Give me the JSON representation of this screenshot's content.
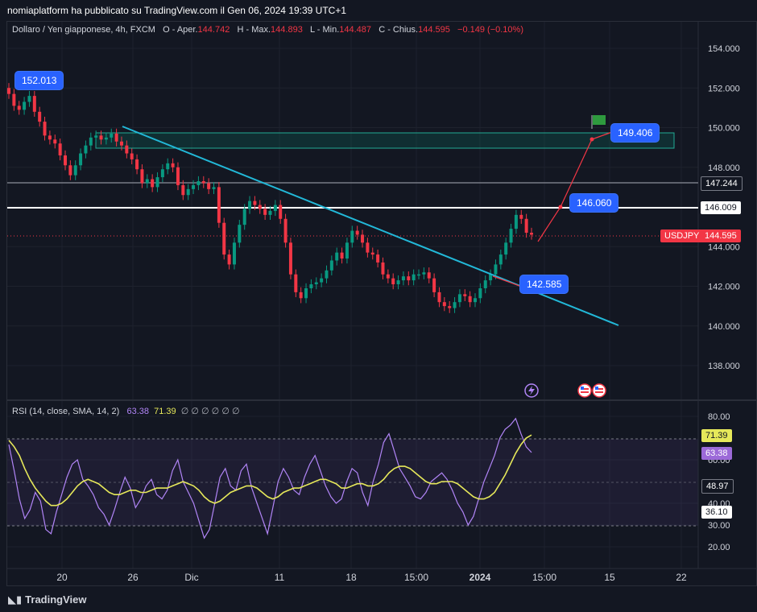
{
  "header": {
    "published_by": "nomiaplatform ha pubblicato su TradingView.com il Gen 06, 2024 19:39 UTC+1"
  },
  "legend": {
    "symbol_desc": "Dollaro / Yen giapponese, 4h, FXCM",
    "open_label": "O - Aper.",
    "open_value": "144.742",
    "high_label": "H - Max.",
    "high_value": "144.893",
    "low_label": "L - Min.",
    "low_value": "144.487",
    "close_label": "C - Chius.",
    "close_value": "144.595",
    "change": "−0.149 (−0.10%)"
  },
  "rsi_legend": {
    "label": "RSI (14, close, SMA, 14, 2)",
    "rsi_value": "63.38",
    "sma_value": "71.39",
    "empty_markers": "∅ ∅ ∅ ∅ ∅ ∅"
  },
  "price_axis": {
    "ticks": [
      "154.000",
      "152.000",
      "150.000",
      "148.000",
      "146.000",
      "144.000",
      "142.000",
      "140.000",
      "138.000"
    ],
    "tags": {
      "level_147": "147.244",
      "level_146": "146.009",
      "symbol": "USDJPY",
      "last": "144.595"
    }
  },
  "rsi_axis": {
    "ticks": [
      "80.00",
      "60.00",
      "40.00",
      "30.00",
      "20.00"
    ],
    "tags": {
      "sma": "71.39",
      "rsi": "63.38",
      "mid": "48.97",
      "low": "36.10"
    }
  },
  "time_axis": {
    "ticks": [
      "20",
      "26",
      "Dic",
      "11",
      "18",
      "15:00",
      "2024",
      "15:00",
      "15",
      "22"
    ]
  },
  "callouts": {
    "high": "152.013",
    "target": "149.406",
    "resistance": "146.060",
    "support": "142.585"
  },
  "footer": {
    "brand": "TradingView"
  },
  "colors": {
    "background": "#131722",
    "up": "#089981",
    "down": "#f23645",
    "trendline": "#22b8d8",
    "rsi": "#b185f7",
    "rsi_sma": "#e6e85a",
    "callout": "#2962ff"
  },
  "chart_data": [
    {
      "type": "candlestick",
      "title": "Dollaro / Yen giapponese, 4h, FXCM",
      "ylim": [
        136.5,
        155.0
      ],
      "y_ticks": [
        154,
        152,
        150,
        148,
        146,
        144,
        142,
        140,
        138
      ],
      "last_close": 144.595,
      "close_series": [
        151.7,
        151.1,
        150.9,
        151.3,
        151.6,
        150.8,
        150.3,
        149.6,
        149.4,
        149.2,
        148.6,
        148.1,
        147.6,
        148.1,
        148.7,
        149.1,
        149.5,
        149.6,
        149.4,
        149.5,
        149.7,
        149.3,
        149.1,
        148.7,
        148.4,
        147.9,
        147.2,
        147.4,
        147.0,
        147.5,
        147.9,
        148.2,
        148.0,
        147.1,
        146.6,
        146.9,
        147.1,
        147.3,
        147.2,
        146.9,
        147.0,
        145.2,
        143.6,
        143.1,
        144.2,
        145.1,
        145.9,
        146.3,
        146.1,
        145.9,
        145.6,
        145.8,
        146.1,
        145.4,
        144.2,
        142.6,
        141.7,
        141.4,
        141.9,
        142.1,
        142.2,
        142.4,
        142.8,
        143.3,
        143.7,
        143.4,
        144.2,
        144.8,
        144.6,
        144.2,
        143.7,
        143.6,
        143.2,
        142.6,
        142.4,
        142.1,
        142.3,
        142.5,
        142.3,
        142.6,
        142.6,
        142.7,
        142.4,
        141.7,
        141.2,
        141.0,
        140.9,
        141.2,
        141.6,
        141.5,
        141.2,
        141.4,
        141.9,
        142.3,
        142.6,
        143.1,
        143.6,
        144.2,
        144.9,
        145.6,
        145.4,
        144.7,
        144.6
      ],
      "lines": [
        {
          "kind": "horizontal",
          "value": 147.244
        },
        {
          "kind": "horizontal",
          "value": 146.009
        },
        {
          "kind": "horizontal_dotted",
          "value": 144.595
        }
      ],
      "trendline": {
        "from_value": 150.0,
        "to_value": 140.1
      },
      "zone": {
        "from": 149.0,
        "to": 149.75
      },
      "projection": [
        144.5,
        146.06,
        149.406
      ],
      "annotations": [
        "152.013",
        "149.406",
        "146.060",
        "142.585"
      ]
    },
    {
      "type": "line",
      "title": "RSI (14, close, SMA, 14, 2)",
      "ylim": [
        13,
        83
      ],
      "y_ticks": [
        80,
        60,
        40,
        30,
        20
      ],
      "bands": [
        70,
        50,
        30
      ],
      "series": [
        {
          "name": "RSI",
          "values": [
            67,
            55,
            42,
            33,
            37,
            45,
            41,
            28,
            26,
            36,
            44,
            52,
            58,
            60,
            51,
            48,
            44,
            38,
            35,
            30,
            37,
            45,
            52,
            47,
            38,
            42,
            48,
            51,
            44,
            42,
            46,
            55,
            60,
            50,
            45,
            40,
            32,
            24,
            28,
            40,
            52,
            56,
            48,
            46,
            55,
            58,
            47,
            40,
            33,
            26,
            38,
            50,
            56,
            52,
            46,
            44,
            52,
            58,
            62,
            55,
            48,
            43,
            40,
            42,
            50,
            56,
            54,
            45,
            39,
            50,
            58,
            68,
            72,
            64,
            56,
            52,
            48,
            43,
            42,
            45,
            50,
            52,
            54,
            51,
            46,
            40,
            36,
            30,
            34,
            42,
            50,
            56,
            62,
            70,
            74,
            76,
            79,
            72,
            66,
            63.38
          ]
        },
        {
          "name": "SMA",
          "values": [
            69,
            66,
            62,
            56,
            51,
            47,
            44,
            41,
            39,
            39,
            40,
            42,
            45,
            48,
            50,
            51,
            50,
            49,
            47,
            45,
            44,
            44,
            45,
            46,
            46,
            45,
            45,
            46,
            47,
            47,
            47,
            48,
            49,
            50,
            49,
            48,
            46,
            43,
            41,
            40,
            41,
            43,
            45,
            46,
            47,
            48,
            48,
            47,
            45,
            43,
            42,
            43,
            45,
            46,
            47,
            47,
            48,
            49,
            50,
            51,
            51,
            50,
            49,
            47,
            47,
            48,
            49,
            49,
            48,
            48,
            49,
            51,
            54,
            56,
            57,
            57,
            56,
            54,
            52,
            50,
            49,
            49,
            50,
            50,
            50,
            49,
            47,
            45,
            43,
            42,
            42,
            43,
            45,
            49,
            53,
            58,
            63,
            67,
            70,
            71.39
          ]
        }
      ],
      "last_values": {
        "RSI": 63.38,
        "SMA": 71.39
      }
    }
  ]
}
